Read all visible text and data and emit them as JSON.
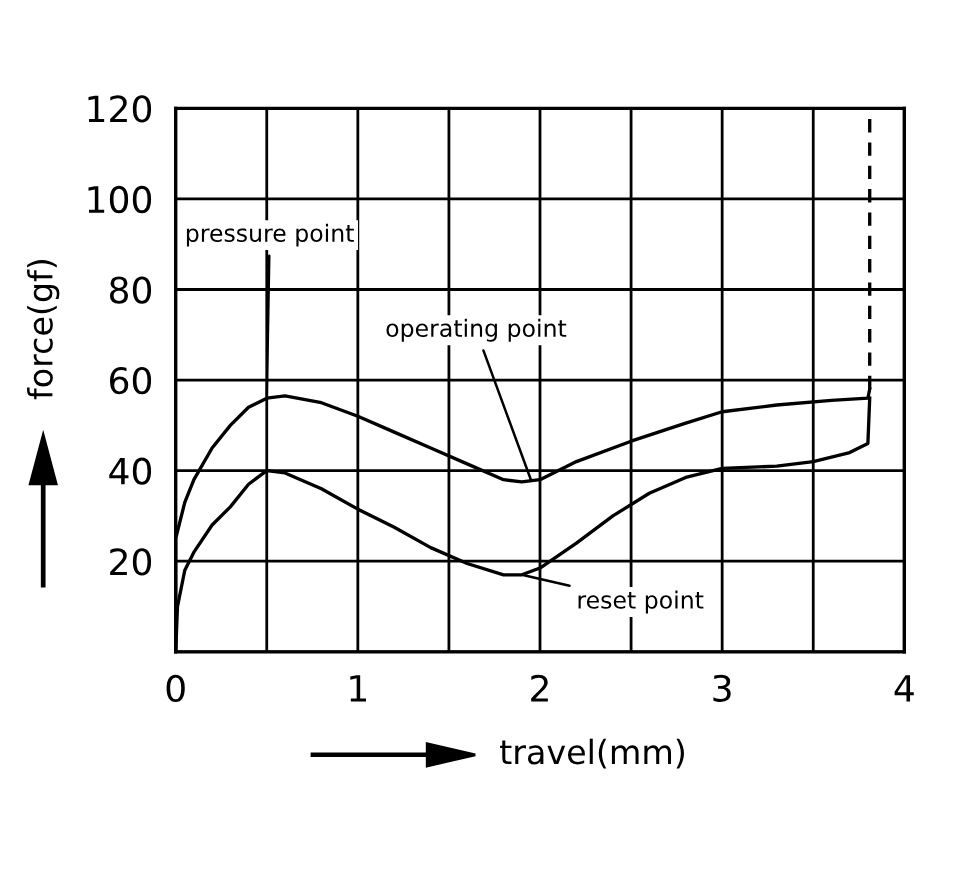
{
  "chart_data": {
    "type": "line",
    "xlabel": "travel(mm)",
    "ylabel": "force(gf)",
    "xlim": [
      0,
      4
    ],
    "ylim": [
      0,
      120
    ],
    "xticks": [
      0,
      {
        "value": 0.5,
        "label": null
      },
      1,
      {
        "value": 1.5,
        "label": null
      },
      2,
      {
        "value": 2.5,
        "label": null
      },
      3,
      {
        "value": 3.5,
        "label": null
      },
      4
    ],
    "yticks": [
      {
        "value": 0,
        "label": null
      },
      20,
      40,
      60,
      80,
      100,
      120
    ],
    "grid": true,
    "marker": "none",
    "series": [
      {
        "color": "#000000",
        "line_style": "solid",
        "x": [
          0,
          0,
          0.05,
          0.1,
          0.2,
          0.3,
          0.4,
          0.5,
          0.6,
          0.8,
          1.0,
          1.2,
          1.4,
          1.6,
          1.8,
          1.9,
          2.0,
          2.2,
          2.5,
          2.8,
          3.0,
          3.3,
          3.6,
          3.8,
          3.81
        ],
        "values": [
          0,
          25,
          33,
          38,
          45,
          50,
          54,
          56,
          56.5,
          55,
          52,
          48.5,
          45,
          41.5,
          38,
          37.5,
          38,
          42,
          46.5,
          50.5,
          53,
          54.5,
          55.5,
          56,
          58
        ]
      },
      {
        "color": "#000000",
        "line_style": "solid",
        "x": [
          0,
          0.01,
          0.05,
          0.1,
          0.2,
          0.3,
          0.4,
          0.5,
          0.6,
          0.8,
          1.0,
          1.2,
          1.4,
          1.6,
          1.8,
          1.9,
          2.0,
          2.2,
          2.4,
          2.6,
          2.8,
          3.0,
          3.3,
          3.5,
          3.7,
          3.8,
          3.81
        ],
        "values": [
          0,
          10,
          18,
          22,
          28,
          32,
          37,
          40,
          39.5,
          36,
          31.5,
          27.5,
          23,
          19.5,
          17,
          17,
          18.5,
          24,
          30,
          35,
          38.5,
          40.5,
          41,
          42,
          44,
          46,
          56
        ]
      },
      {
        "color": "#000000",
        "line_style": "dashed",
        "x": [
          3.81,
          3.81
        ],
        "values": [
          58,
          120
        ]
      }
    ],
    "annotations": [
      {
        "text": "pressure point",
        "x": 0.5,
        "y": 56
      },
      {
        "text": "operating point",
        "x": 1.95,
        "y": 38
      },
      {
        "text": "reset point",
        "x": 1.9,
        "y": 17
      }
    ]
  }
}
